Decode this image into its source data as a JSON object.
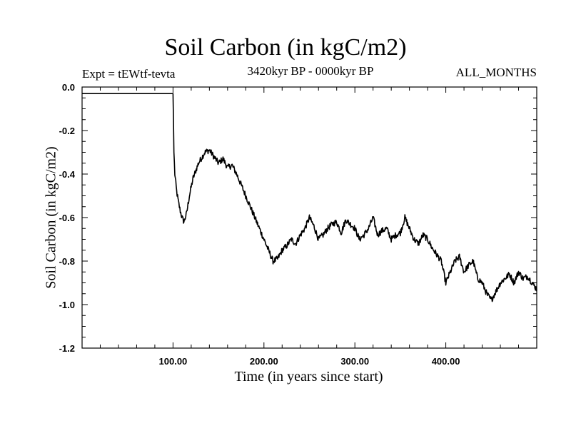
{
  "chart_data": {
    "type": "line",
    "title": "Soil Carbon (in kgC/m2)",
    "subtitle": "3420kyr BP - 0000kyr BP",
    "experiment_label": "Expt = tEWtf-tevta",
    "season_label": "ALL_MONTHS",
    "xlabel": "Time (in years since start)",
    "ylabel": "Soil Carbon (in kgC/m2)",
    "xlim": [
      0,
      500
    ],
    "ylim": [
      -1.2,
      0.0
    ],
    "x_tick_values": [
      100,
      200,
      300,
      400
    ],
    "x_tick_labels": [
      "100.00",
      "200.00",
      "300.00",
      "400.00"
    ],
    "y_tick_values": [
      0.0,
      -0.2,
      -0.4,
      -0.6,
      -0.8,
      -1.0,
      -1.2
    ],
    "y_tick_labels": [
      "0.0",
      "-0.2",
      "-0.4",
      "-0.6",
      "-0.8",
      "-1.0",
      "-1.2"
    ],
    "series": [
      {
        "name": "Soil Carbon",
        "x": [
          0,
          100,
          100.5,
          101,
          102,
          104,
          106,
          108,
          110,
          112,
          115,
          118,
          122,
          128,
          135,
          140,
          145,
          150,
          155,
          160,
          165,
          170,
          175,
          180,
          185,
          190,
          195,
          200,
          205,
          210,
          215,
          220,
          225,
          230,
          235,
          240,
          245,
          250,
          255,
          260,
          265,
          270,
          275,
          280,
          285,
          290,
          295,
          300,
          305,
          310,
          315,
          320,
          325,
          330,
          335,
          340,
          345,
          350,
          355,
          360,
          365,
          370,
          375,
          380,
          385,
          390,
          395,
          400,
          405,
          410,
          415,
          420,
          425,
          430,
          435,
          440,
          445,
          450,
          455,
          460,
          465,
          470,
          475,
          480,
          485,
          490,
          495,
          500
        ],
        "values": [
          -0.03,
          -0.03,
          -0.15,
          -0.3,
          -0.4,
          -0.48,
          -0.53,
          -0.57,
          -0.6,
          -0.62,
          -0.58,
          -0.5,
          -0.42,
          -0.35,
          -0.3,
          -0.29,
          -0.32,
          -0.35,
          -0.33,
          -0.37,
          -0.36,
          -0.4,
          -0.45,
          -0.5,
          -0.55,
          -0.6,
          -0.65,
          -0.7,
          -0.75,
          -0.8,
          -0.79,
          -0.75,
          -0.73,
          -0.7,
          -0.72,
          -0.68,
          -0.65,
          -0.6,
          -0.64,
          -0.7,
          -0.68,
          -0.65,
          -0.63,
          -0.62,
          -0.67,
          -0.61,
          -0.63,
          -0.65,
          -0.7,
          -0.68,
          -0.65,
          -0.6,
          -0.68,
          -0.66,
          -0.65,
          -0.7,
          -0.68,
          -0.67,
          -0.6,
          -0.65,
          -0.7,
          -0.72,
          -0.68,
          -0.7,
          -0.74,
          -0.77,
          -0.8,
          -0.9,
          -0.85,
          -0.8,
          -0.78,
          -0.85,
          -0.82,
          -0.8,
          -0.88,
          -0.9,
          -0.95,
          -0.98,
          -0.94,
          -0.9,
          -0.88,
          -0.86,
          -0.9,
          -0.85,
          -0.88,
          -0.87,
          -0.9,
          -0.93
        ]
      }
    ]
  }
}
